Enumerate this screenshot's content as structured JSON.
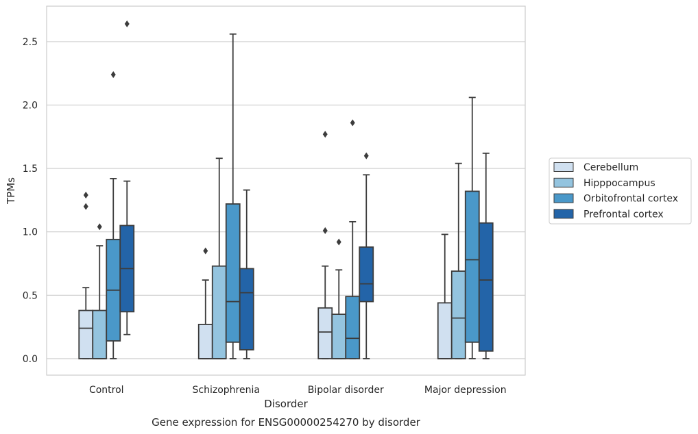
{
  "chart_data": {
    "type": "box",
    "title": "",
    "caption": "Gene expression for ENSG00000254270 by disorder",
    "xlabel": "Disorder",
    "ylabel": "TPMs",
    "categories": [
      "Control",
      "Schizophrenia",
      "Bipolar disorder",
      "Major depression"
    ],
    "y_ticks": [
      "0.0",
      "0.5",
      "1.0",
      "1.5",
      "2.0",
      "2.5"
    ],
    "ylim": [
      -0.13,
      2.78
    ],
    "grid": "horizontal",
    "legend_position": "right",
    "colors": {
      "Cerebellum": "#d0e0f0",
      "Hipppocampus": "#94c4df",
      "Orbitofrontal cortex": "#4a98c9",
      "Prefrontal cortex": "#2364a8",
      "edge": "#3c3c3c",
      "grid": "#cccccc",
      "frame": "#cccccc"
    },
    "series": [
      {
        "name": "Cerebellum",
        "boxes": [
          {
            "q1": 0.0,
            "median": 0.24,
            "q3": 0.38,
            "whisker_low": 0.0,
            "whisker_high": 0.56,
            "outliers": [
              1.29,
              1.2
            ]
          },
          {
            "q1": 0.0,
            "median": 0.0,
            "q3": 0.27,
            "whisker_low": 0.0,
            "whisker_high": 0.62,
            "outliers": [
              0.85
            ]
          },
          {
            "q1": 0.0,
            "median": 0.21,
            "q3": 0.4,
            "whisker_low": 0.0,
            "whisker_high": 0.73,
            "outliers": [
              1.77,
              1.01
            ]
          },
          {
            "q1": 0.0,
            "median": 0.0,
            "q3": 0.44,
            "whisker_low": 0.0,
            "whisker_high": 0.98,
            "outliers": []
          }
        ]
      },
      {
        "name": "Hipppocampus",
        "boxes": [
          {
            "q1": 0.0,
            "median": 0.0,
            "q3": 0.38,
            "whisker_low": 0.0,
            "whisker_high": 0.89,
            "outliers": [
              1.04
            ]
          },
          {
            "q1": 0.0,
            "median": 0.0,
            "q3": 0.73,
            "whisker_low": 0.0,
            "whisker_high": 1.58,
            "outliers": []
          },
          {
            "q1": 0.0,
            "median": 0.0,
            "q3": 0.35,
            "whisker_low": 0.0,
            "whisker_high": 0.7,
            "outliers": [
              0.92
            ]
          },
          {
            "q1": 0.0,
            "median": 0.32,
            "q3": 0.69,
            "whisker_low": 0.0,
            "whisker_high": 1.54,
            "outliers": []
          }
        ]
      },
      {
        "name": "Orbitofrontal cortex",
        "boxes": [
          {
            "q1": 0.14,
            "median": 0.54,
            "q3": 0.94,
            "whisker_low": 0.0,
            "whisker_high": 1.42,
            "outliers": [
              2.24
            ]
          },
          {
            "q1": 0.13,
            "median": 0.45,
            "q3": 1.22,
            "whisker_low": 0.0,
            "whisker_high": 2.56,
            "outliers": []
          },
          {
            "q1": 0.0,
            "median": 0.16,
            "q3": 0.49,
            "whisker_low": 0.0,
            "whisker_high": 1.08,
            "outliers": [
              1.86
            ]
          },
          {
            "q1": 0.13,
            "median": 0.78,
            "q3": 1.32,
            "whisker_low": 0.0,
            "whisker_high": 2.06,
            "outliers": []
          }
        ]
      },
      {
        "name": "Prefrontal cortex",
        "boxes": [
          {
            "q1": 0.37,
            "median": 0.71,
            "q3": 1.05,
            "whisker_low": 0.19,
            "whisker_high": 1.4,
            "outliers": [
              2.64
            ]
          },
          {
            "q1": 0.07,
            "median": 0.52,
            "q3": 0.71,
            "whisker_low": 0.0,
            "whisker_high": 1.33,
            "outliers": []
          },
          {
            "q1": 0.45,
            "median": 0.59,
            "q3": 0.88,
            "whisker_low": 0.0,
            "whisker_high": 1.45,
            "outliers": [
              1.6
            ]
          },
          {
            "q1": 0.06,
            "median": 0.62,
            "q3": 1.07,
            "whisker_low": 0.0,
            "whisker_high": 1.62,
            "outliers": []
          }
        ]
      }
    ]
  }
}
